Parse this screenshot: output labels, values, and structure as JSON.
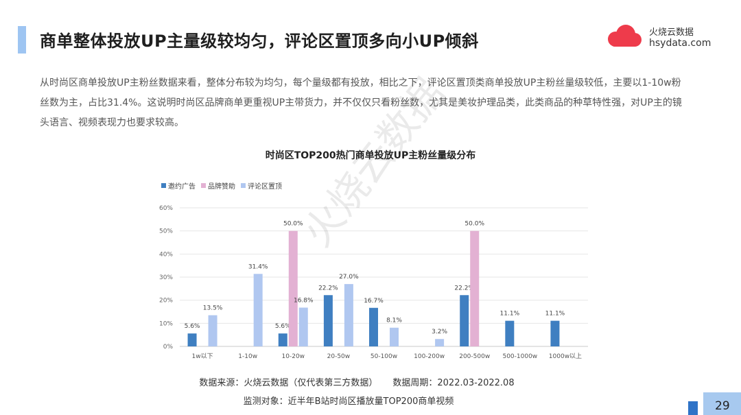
{
  "header": {
    "title": "商单整体投放UP主量级较均匀，评论区置顶多向小UP倾斜",
    "brand_cn": "火烧云数据",
    "brand_en": "hsydata.com"
  },
  "intro": "从时尚区商单投放UP主粉丝数据来看，整体分布较为均匀，每个量级都有投放，相比之下，评论区置顶类商单投放UP主粉丝量级较低，主要以1-10w粉丝数为主，占比31.4%。这说明时尚区品牌商单更重视UP主带货力，并不仅仅只看粉丝数，尤其是美妆护理品类，此类商品的种草特性强，对UP主的镜头语言、视频表现力也要求较高。",
  "watermark": "火烧云数据",
  "chart_data": {
    "type": "bar",
    "title": "时尚区TOP200热门商单投放UP主粉丝量级分布",
    "categories": [
      "1w以下",
      "1-10w",
      "10-20w",
      "20-50w",
      "50-100w",
      "100-200w",
      "200-500w",
      "500-1000w",
      "1000w以上"
    ],
    "series": [
      {
        "name": "邀约广告",
        "color": "#3f7fc1",
        "values": [
          5.6,
          null,
          5.6,
          22.2,
          16.7,
          null,
          22.2,
          11.1,
          11.1
        ]
      },
      {
        "name": "品牌赞助",
        "color": "#e3b1d3",
        "values": [
          null,
          null,
          50.0,
          null,
          null,
          null,
          50.0,
          null,
          null
        ]
      },
      {
        "name": "评论区置顶",
        "color": "#b0c7f0",
        "values": [
          13.5,
          31.4,
          16.8,
          27.0,
          8.1,
          3.2,
          null,
          null,
          null
        ]
      }
    ],
    "yticks": [
      "0%",
      "10%",
      "20%",
      "30%",
      "40%",
      "50%",
      "60%"
    ],
    "ylim": [
      0,
      60
    ],
    "grid": true,
    "legend_position": "top-left"
  },
  "footer": {
    "source": "数据来源：火烧云数据（仅代表第三方数据）",
    "period": "数据周期：2022.03-2022.08",
    "subject": "监测对象：近半年B站时尚区播放量TOP200商单视频",
    "page_number": "29"
  }
}
